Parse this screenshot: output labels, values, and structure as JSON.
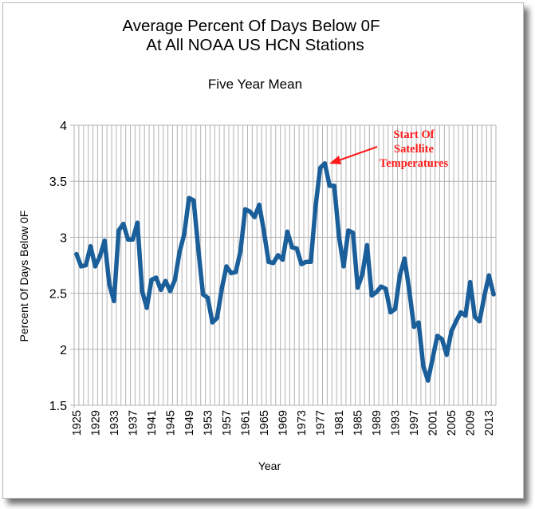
{
  "chart_data": {
    "type": "line",
    "title": [
      "Average Percent Of Days Below 0F",
      "At All NOAA US HCN Stations"
    ],
    "subtitle": "Five Year Mean",
    "xlabel": "Year",
    "ylabel": "Percent Of Days Below 0F",
    "ylim": [
      1.5,
      4
    ],
    "yticks": [
      "1.5",
      "2",
      "2.5",
      "3",
      "3.5",
      "4"
    ],
    "xlim": [
      1925,
      2015
    ],
    "xticks": [
      "1925",
      "1929",
      "1933",
      "1937",
      "1941",
      "1945",
      "1949",
      "1953",
      "1957",
      "1961",
      "1965",
      "1969",
      "1973",
      "1977",
      "1981",
      "1985",
      "1989",
      "1993",
      "1997",
      "2001",
      "2005",
      "2009",
      "2013"
    ],
    "grid": true,
    "line_color": "#1a5e9a",
    "annotation": {
      "lines": [
        "Start Of",
        "Satellite",
        "Temperatures"
      ],
      "color": "#ff1a1a",
      "points_to_year": 1979
    },
    "x": [
      1925,
      1926,
      1927,
      1928,
      1929,
      1930,
      1931,
      1932,
      1933,
      1934,
      1935,
      1936,
      1937,
      1938,
      1939,
      1940,
      1941,
      1942,
      1943,
      1944,
      1945,
      1946,
      1947,
      1948,
      1949,
      1950,
      1951,
      1952,
      1953,
      1954,
      1955,
      1956,
      1957,
      1958,
      1959,
      1960,
      1961,
      1962,
      1963,
      1964,
      1965,
      1966,
      1967,
      1968,
      1969,
      1970,
      1971,
      1972,
      1973,
      1974,
      1975,
      1976,
      1977,
      1978,
      1979,
      1980,
      1981,
      1982,
      1983,
      1984,
      1985,
      1986,
      1987,
      1988,
      1989,
      1990,
      1991,
      1992,
      1993,
      1994,
      1995,
      1996,
      1997,
      1998,
      1999,
      2000,
      2001,
      2002,
      2003,
      2004,
      2005,
      2006,
      2007,
      2008,
      2009,
      2010,
      2011,
      2012,
      2013,
      2014
    ],
    "y": [
      2.85,
      2.74,
      2.75,
      2.92,
      2.74,
      2.83,
      2.97,
      2.58,
      2.43,
      3.06,
      3.12,
      2.98,
      2.98,
      3.13,
      2.52,
      2.37,
      2.62,
      2.64,
      2.53,
      2.61,
      2.52,
      2.62,
      2.87,
      3.03,
      3.35,
      3.33,
      2.89,
      2.49,
      2.46,
      2.24,
      2.28,
      2.54,
      2.74,
      2.68,
      2.69,
      2.88,
      3.25,
      3.23,
      3.18,
      3.29,
      3.05,
      2.78,
      2.77,
      2.84,
      2.8,
      3.05,
      2.91,
      2.9,
      2.76,
      2.78,
      2.78,
      3.27,
      3.62,
      3.66,
      3.46,
      3.46,
      3.01,
      2.74,
      3.06,
      3.04,
      2.55,
      2.67,
      2.93,
      2.48,
      2.51,
      2.56,
      2.54,
      2.33,
      2.36,
      2.66,
      2.81,
      2.53,
      2.2,
      2.24,
      1.85,
      1.72,
      1.92,
      2.12,
      2.09,
      1.95,
      2.16,
      2.25,
      2.33,
      2.3,
      2.6,
      2.29,
      2.25,
      2.47,
      2.66,
      2.49
    ]
  }
}
